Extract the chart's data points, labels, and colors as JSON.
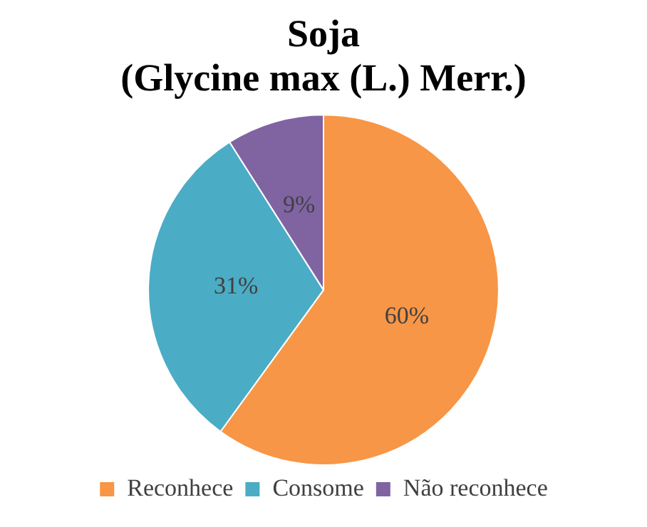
{
  "chart_data": {
    "type": "pie",
    "title": "Soja\n(Glycine max (L.) Merr.)",
    "categories": [
      "Reconhece",
      "Consome",
      "Não reconhece"
    ],
    "values": [
      60,
      31,
      9
    ],
    "colors": [
      "#f79646",
      "#4bacc6",
      "#8064a2"
    ],
    "value_labels": [
      "60%",
      "31%",
      "9%"
    ],
    "legend": "bottom"
  }
}
